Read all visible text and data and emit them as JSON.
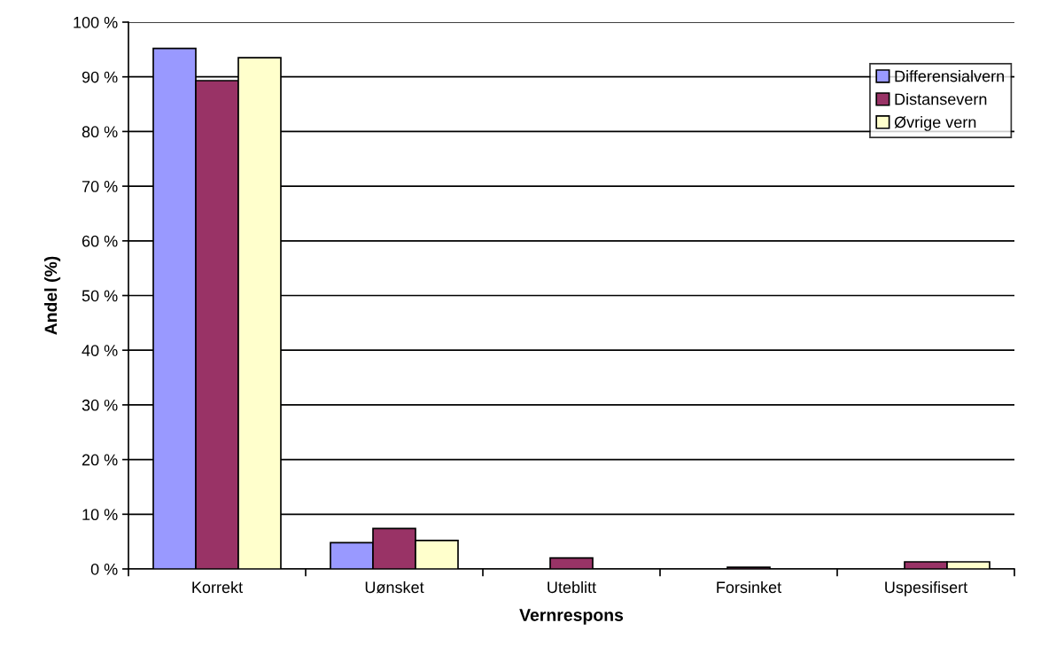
{
  "chart_data": {
    "type": "bar",
    "xlabel": "Vernrespons",
    "ylabel": "Andel (%)",
    "categories": [
      "Korrekt",
      "Uønsket",
      "Uteblitt",
      "Forsinket",
      "Uspesifisert"
    ],
    "series": [
      {
        "name": "Differensialvern",
        "color": "#9999ff",
        "values": [
          95.2,
          4.8,
          0,
          0,
          0
        ]
      },
      {
        "name": "Distansevern",
        "color": "#993366",
        "values": [
          89.3,
          7.4,
          2.0,
          0.3,
          1.3
        ]
      },
      {
        "name": "Øvrige vern",
        "color": "#ffffcc",
        "values": [
          93.5,
          5.2,
          0,
          0,
          1.3
        ]
      }
    ],
    "ylim": [
      0,
      100
    ],
    "yticks": [
      {
        "value": 0,
        "label": "0 %"
      },
      {
        "value": 10,
        "label": "10 %"
      },
      {
        "value": 20,
        "label": "20 %"
      },
      {
        "value": 30,
        "label": "30 %"
      },
      {
        "value": 40,
        "label": "40 %"
      },
      {
        "value": 50,
        "label": "50 %"
      },
      {
        "value": 60,
        "label": "60 %"
      },
      {
        "value": 70,
        "label": "70 %"
      },
      {
        "value": 80,
        "label": "80 %"
      },
      {
        "value": 90,
        "label": "90 %"
      },
      {
        "value": 100,
        "label": "100 %"
      }
    ],
    "grid": "y",
    "legend": "top right"
  }
}
